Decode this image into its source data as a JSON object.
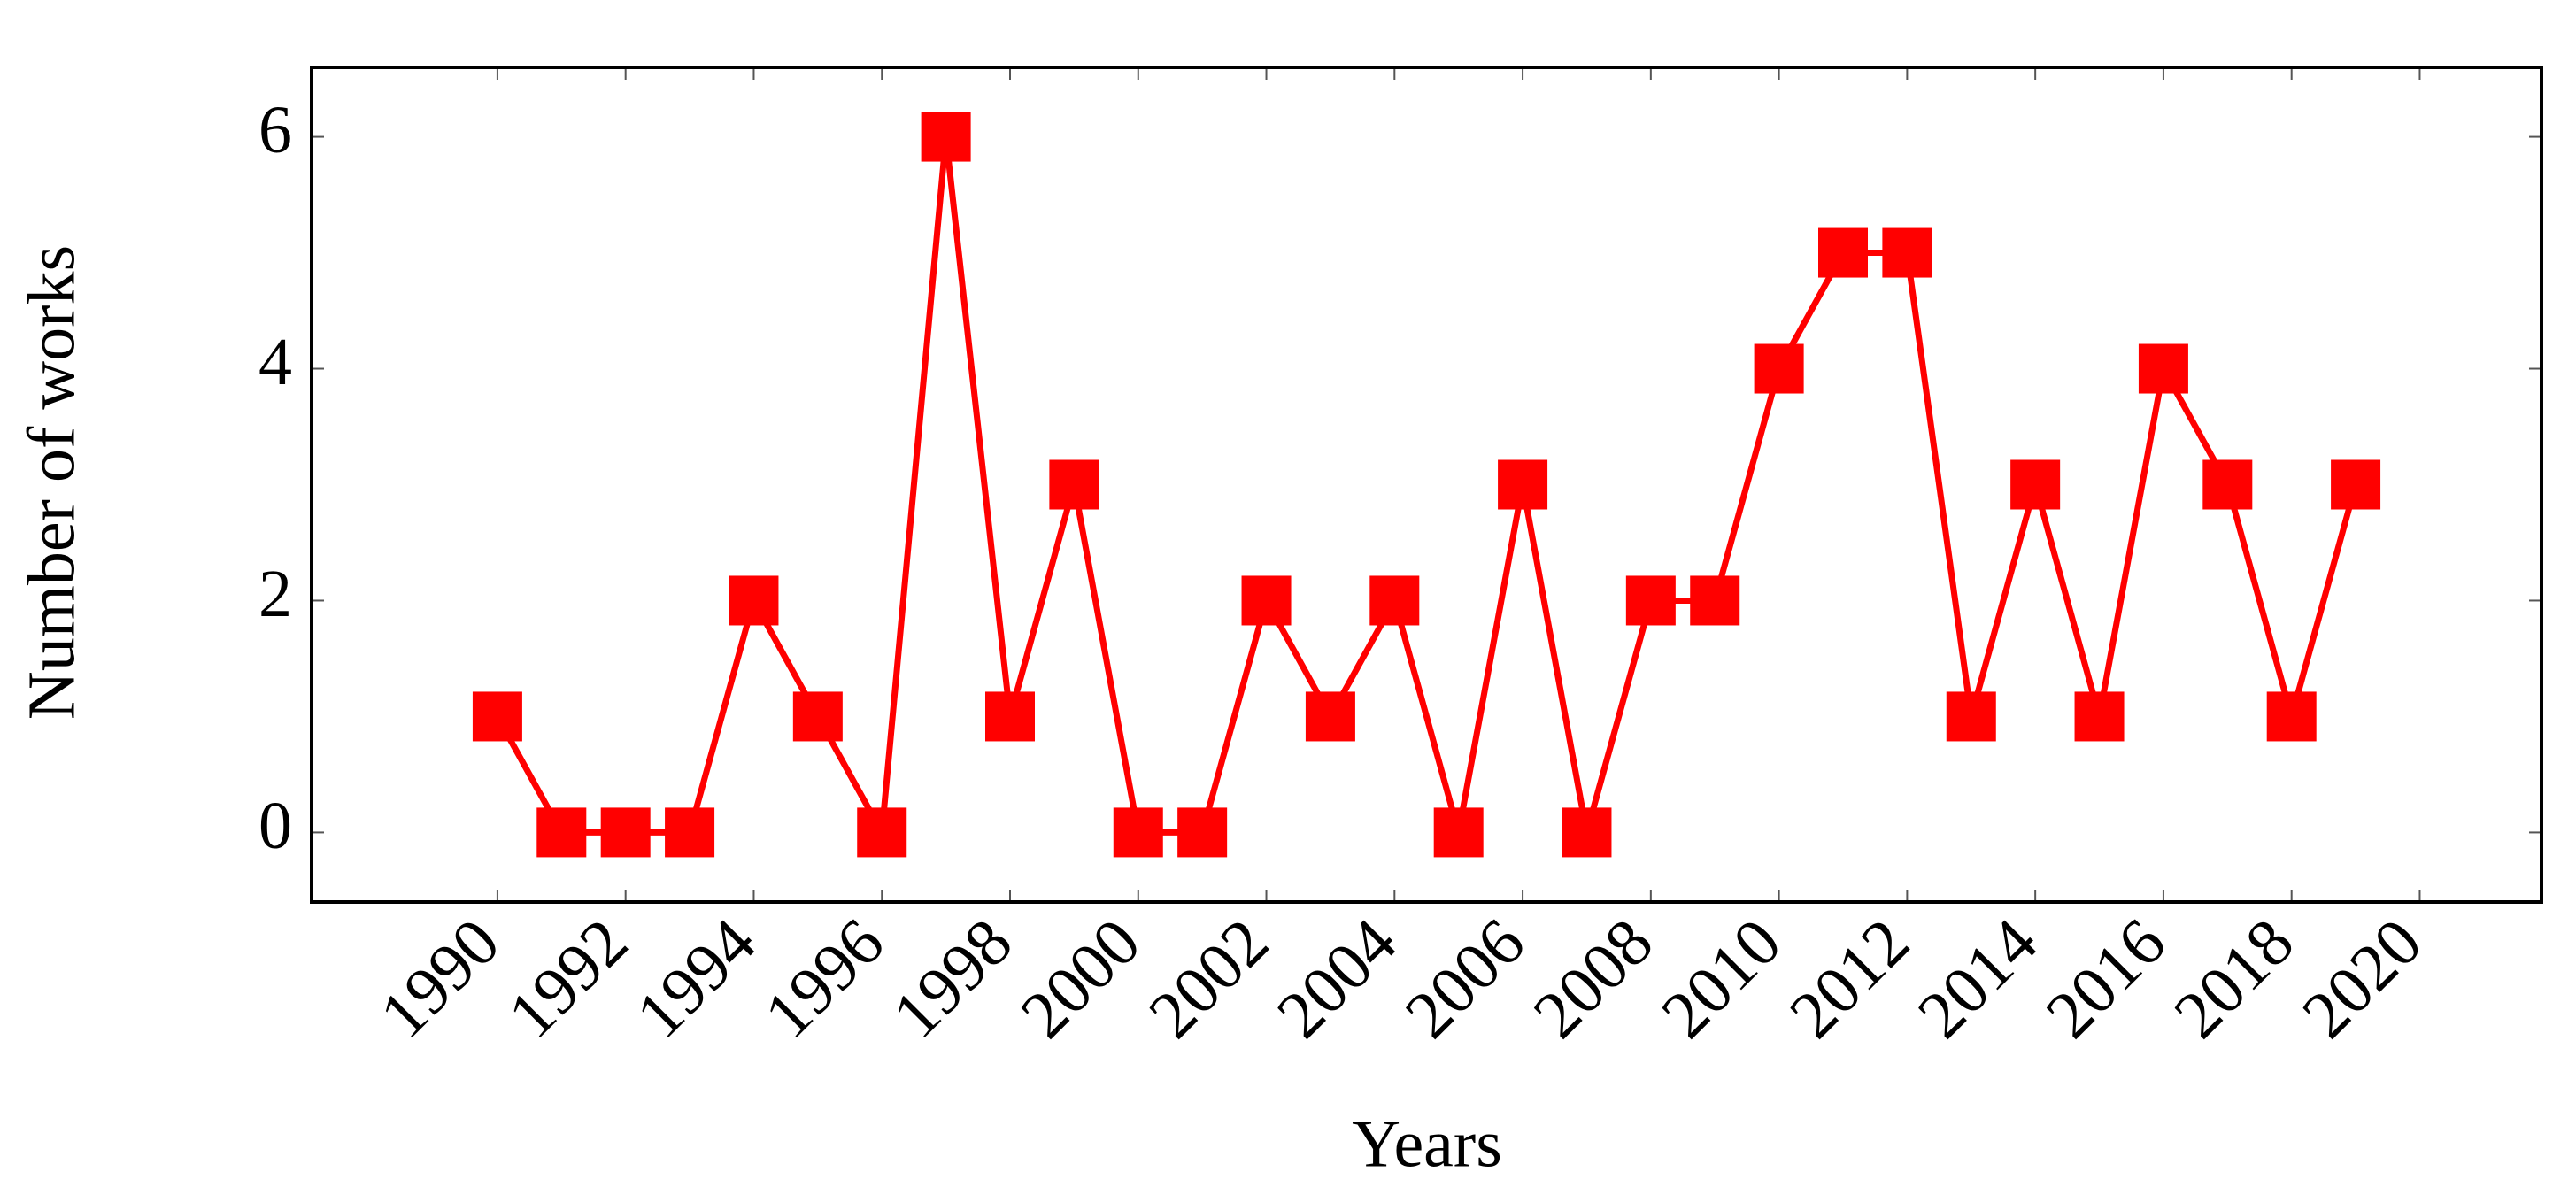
{
  "chart_data": {
    "type": "line",
    "x_label": "Years",
    "y_label": "Number of works",
    "x": [
      1990,
      1991,
      1992,
      1993,
      1994,
      1995,
      1996,
      1997,
      1998,
      1999,
      2000,
      2001,
      2002,
      2003,
      2004,
      2005,
      2006,
      2007,
      2008,
      2009,
      2010,
      2011,
      2012,
      2013,
      2014,
      2015,
      2016,
      2017,
      2018,
      2019
    ],
    "series": [
      {
        "name": "Number of works",
        "color": "#ff0000",
        "values": [
          1,
          0,
          0,
          0,
          2,
          1,
          0,
          6,
          1,
          3,
          0,
          0,
          2,
          1,
          2,
          0,
          3,
          0,
          2,
          2,
          4,
          5,
          5,
          1,
          3,
          1,
          4,
          3,
          1,
          3
        ]
      }
    ],
    "xlim": [
      1987.1,
      2021.9
    ],
    "xticks": [
      1990,
      1992,
      1994,
      1996,
      1998,
      2000,
      2002,
      2004,
      2006,
      2008,
      2010,
      2012,
      2014,
      2016,
      2018,
      2020
    ],
    "ylim": [
      -0.6,
      6.6
    ],
    "yticks": [
      0,
      2,
      4,
      6
    ],
    "marker": "square",
    "grid": false,
    "legend": false
  }
}
